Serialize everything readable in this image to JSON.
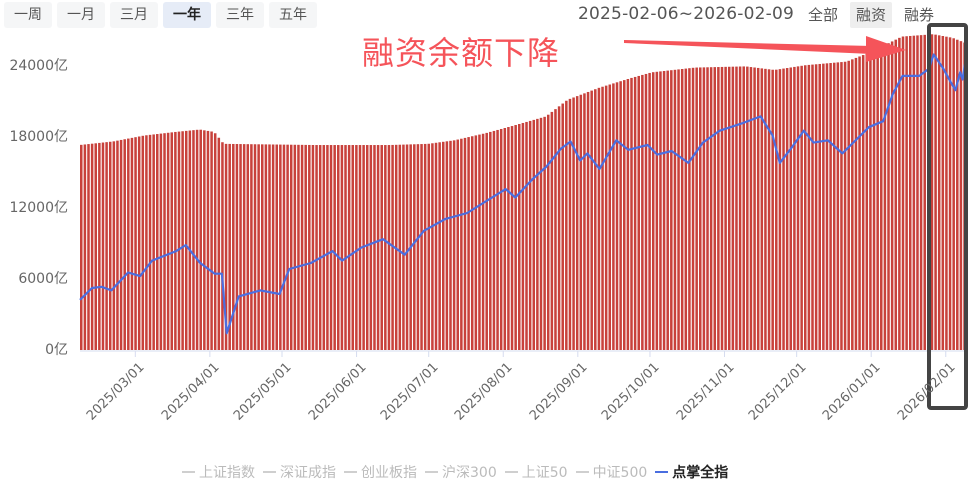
{
  "toolbar": {
    "range_tabs": [
      {
        "label": "一周",
        "active": false
      },
      {
        "label": "一月",
        "active": false
      },
      {
        "label": "三月",
        "active": false
      },
      {
        "label": "一年",
        "active": true
      },
      {
        "label": "三年",
        "active": false
      },
      {
        "label": "五年",
        "active": false
      }
    ],
    "date_range": "2025-02-06~2026-02-09",
    "type_tabs": [
      {
        "label": "全部",
        "active": false
      },
      {
        "label": "融资",
        "active": true
      },
      {
        "label": "融券",
        "active": false
      }
    ]
  },
  "annotation": {
    "text": "融资余额下降",
    "color": "#f5545a",
    "box_color": "#444444"
  },
  "colors": {
    "bar": "#c8413b",
    "bar_gap": "#f2c4c2",
    "line": "#4a6ee0",
    "axis": "#d6dcef"
  },
  "legend": [
    {
      "label": "上证指数",
      "active": false
    },
    {
      "label": "深证成指",
      "active": false
    },
    {
      "label": "创业板指",
      "active": false
    },
    {
      "label": "沪深300",
      "active": false
    },
    {
      "label": "上证50",
      "active": false
    },
    {
      "label": "中证500",
      "active": false
    },
    {
      "label": "点掌全指",
      "active": true
    }
  ],
  "chart_data": {
    "type": "bar+line",
    "title": "",
    "xlabel": "",
    "ylabel": "",
    "ylim": [
      0,
      24000
    ],
    "y_unit": "亿",
    "y_ticks": [
      "0亿",
      "6000亿",
      "12000亿",
      "18000亿",
      "24000亿"
    ],
    "x_ticks": [
      "2025/03/01",
      "2025/04/01",
      "2025/05/01",
      "2025/06/01",
      "2025/07/01",
      "2025/08/01",
      "2025/09/01",
      "2025/10/01",
      "2025/11/01",
      "2025/12/01",
      "2026/01/01",
      "2026/02/01"
    ],
    "x_range": [
      "2025-02-06",
      "2026-02-09"
    ],
    "grid": false,
    "legend_position": "bottom",
    "series": [
      {
        "name": "融资余额",
        "type": "bar",
        "points": [
          [
            "2025-02-06",
            17200
          ],
          [
            "2025-02-20",
            17500
          ],
          [
            "2025-03-05",
            18000
          ],
          [
            "2025-03-18",
            18300
          ],
          [
            "2025-03-28",
            18500
          ],
          [
            "2025-04-03",
            18300
          ],
          [
            "2025-04-07",
            17300
          ],
          [
            "2025-05-15",
            17200
          ],
          [
            "2025-06-15",
            17200
          ],
          [
            "2025-07-01",
            17300
          ],
          [
            "2025-07-12",
            17600
          ],
          [
            "2025-07-25",
            18200
          ],
          [
            "2025-08-05",
            18800
          ],
          [
            "2025-08-19",
            19600
          ],
          [
            "2025-08-28",
            21000
          ],
          [
            "2025-09-10",
            22000
          ],
          [
            "2025-09-23",
            22800
          ],
          [
            "2025-10-02",
            23300
          ],
          [
            "2025-10-20",
            23700
          ],
          [
            "2025-11-10",
            23800
          ],
          [
            "2025-11-22",
            23500
          ],
          [
            "2025-12-05",
            23900
          ],
          [
            "2025-12-22",
            24200
          ],
          [
            "2026-01-01",
            25000
          ],
          [
            "2026-01-14",
            26300
          ],
          [
            "2026-01-27",
            26500
          ],
          [
            "2026-02-04",
            26200
          ],
          [
            "2026-02-09",
            25800
          ]
        ]
      },
      {
        "name": "点掌全指",
        "type": "line",
        "points": [
          [
            "2025-02-06",
            4200
          ],
          [
            "2025-02-11",
            5200
          ],
          [
            "2025-02-15",
            5300
          ],
          [
            "2025-02-19",
            5000
          ],
          [
            "2025-02-26",
            6500
          ],
          [
            "2025-03-03",
            6200
          ],
          [
            "2025-03-08",
            7500
          ],
          [
            "2025-03-18",
            8300
          ],
          [
            "2025-03-22",
            8800
          ],
          [
            "2025-03-28",
            7300
          ],
          [
            "2025-04-03",
            6400
          ],
          [
            "2025-04-06",
            6400
          ],
          [
            "2025-04-08",
            1400
          ],
          [
            "2025-04-13",
            4500
          ],
          [
            "2025-04-22",
            5000
          ],
          [
            "2025-04-30",
            4700
          ],
          [
            "2025-05-04",
            6800
          ],
          [
            "2025-05-13",
            7300
          ],
          [
            "2025-05-22",
            8300
          ],
          [
            "2025-05-26",
            7500
          ],
          [
            "2025-06-03",
            8600
          ],
          [
            "2025-06-12",
            9300
          ],
          [
            "2025-06-21",
            8000
          ],
          [
            "2025-06-29",
            10000
          ],
          [
            "2025-07-08",
            11000
          ],
          [
            "2025-07-17",
            11500
          ],
          [
            "2025-07-25",
            12500
          ],
          [
            "2025-08-02",
            13500
          ],
          [
            "2025-08-06",
            12800
          ],
          [
            "2025-08-13",
            14300
          ],
          [
            "2025-08-19",
            15400
          ],
          [
            "2025-08-25",
            16900
          ],
          [
            "2025-08-29",
            17500
          ],
          [
            "2025-09-02",
            15900
          ],
          [
            "2025-09-05",
            16500
          ],
          [
            "2025-09-10",
            15200
          ],
          [
            "2025-09-17",
            17600
          ],
          [
            "2025-09-22",
            16800
          ],
          [
            "2025-09-30",
            17200
          ],
          [
            "2025-10-04",
            16400
          ],
          [
            "2025-10-10",
            16700
          ],
          [
            "2025-10-17",
            15700
          ],
          [
            "2025-10-23",
            17400
          ],
          [
            "2025-10-30",
            18400
          ],
          [
            "2025-11-08",
            19000
          ],
          [
            "2025-11-16",
            19600
          ],
          [
            "2025-11-21",
            18000
          ],
          [
            "2025-11-24",
            15700
          ],
          [
            "2025-11-29",
            17000
          ],
          [
            "2025-12-04",
            18400
          ],
          [
            "2025-12-08",
            17400
          ],
          [
            "2025-12-14",
            17600
          ],
          [
            "2025-12-20",
            16500
          ],
          [
            "2025-12-26",
            17700
          ],
          [
            "2025-12-31",
            18700
          ],
          [
            "2026-01-06",
            19200
          ],
          [
            "2026-01-10",
            21500
          ],
          [
            "2026-01-14",
            23000
          ],
          [
            "2026-01-21",
            23000
          ],
          [
            "2026-01-25",
            23600
          ],
          [
            "2026-01-27",
            24800
          ],
          [
            "2026-01-31",
            23600
          ],
          [
            "2026-02-03",
            22500
          ],
          [
            "2026-02-05",
            21800
          ],
          [
            "2026-02-07",
            23300
          ],
          [
            "2026-02-08",
            22700
          ],
          [
            "2026-02-09",
            24000
          ]
        ]
      }
    ]
  }
}
